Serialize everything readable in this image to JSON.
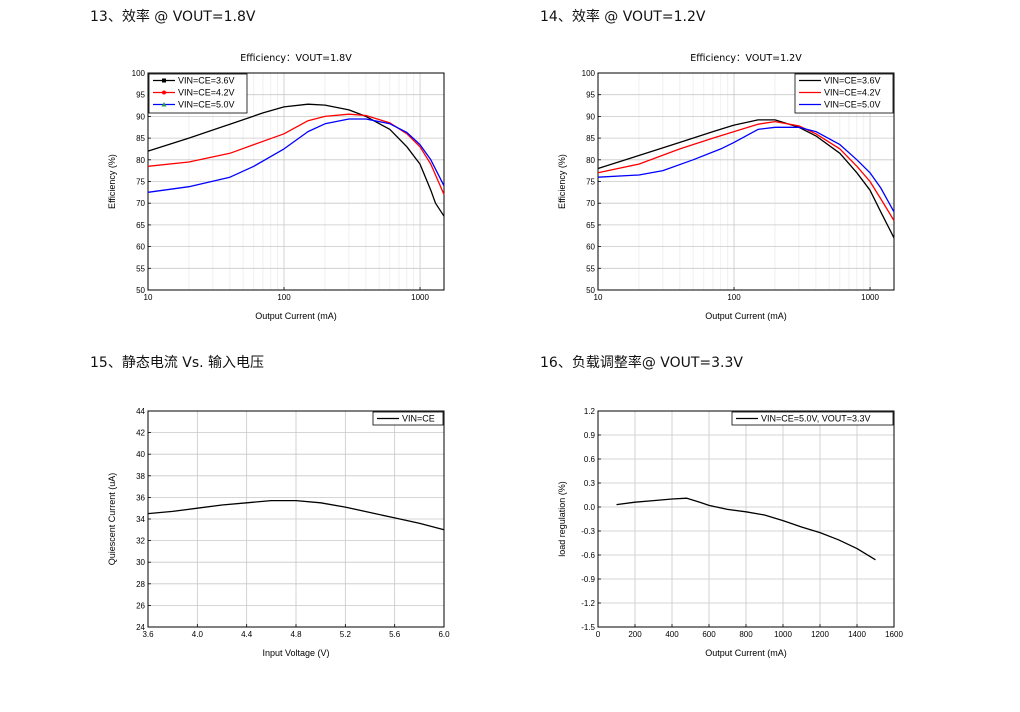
{
  "section_titles": [
    "13、效率 @ VOUT=1.8V",
    "14、效率 @ VOUT=1.2V",
    "15、静态电流 Vs. 输入电压",
    "16、负载调整率@ VOUT=3.3V"
  ],
  "chart_data": [
    {
      "type": "line",
      "title": "Efficiency：VOUT=1.8V",
      "xlabel": "Output Current (mA)",
      "ylabel": "Efficiency (%)",
      "xscale": "log",
      "xlim": [
        10,
        1500
      ],
      "ylim": [
        50,
        100
      ],
      "xticks": [
        10,
        100,
        1000
      ],
      "yticks": [
        50,
        55,
        60,
        65,
        70,
        75,
        80,
        85,
        90,
        95,
        100
      ],
      "grid": true,
      "legend_position": "top-left",
      "series": [
        {
          "name": "VIN=CE=3.6V",
          "color": "#000000",
          "marker": "square",
          "points": [
            [
              10,
              82
            ],
            [
              20,
              85
            ],
            [
              40,
              88.2
            ],
            [
              70,
              90.8
            ],
            [
              100,
              92.2
            ],
            [
              150,
              92.8
            ],
            [
              200,
              92.6
            ],
            [
              300,
              91.5
            ],
            [
              400,
              90
            ],
            [
              600,
              87
            ],
            [
              800,
              83
            ],
            [
              1000,
              79
            ],
            [
              1200,
              73
            ],
            [
              1300,
              70
            ],
            [
              1500,
              67
            ]
          ]
        },
        {
          "name": "VIN=CE=4.2V",
          "color": "#ff0000",
          "marker": "circle",
          "points": [
            [
              10,
              78.5
            ],
            [
              20,
              79.5
            ],
            [
              40,
              81.5
            ],
            [
              60,
              83.5
            ],
            [
              100,
              86
            ],
            [
              150,
              89
            ],
            [
              200,
              90
            ],
            [
              300,
              90.5
            ],
            [
              400,
              90.2
            ],
            [
              600,
              88.5
            ],
            [
              800,
              86
            ],
            [
              1000,
              83
            ],
            [
              1200,
              79
            ],
            [
              1500,
              72
            ]
          ]
        },
        {
          "name": "VIN=CE=5.0V",
          "color": "#0000ff",
          "marker": "triangle",
          "points": [
            [
              10,
              72.5
            ],
            [
              20,
              73.8
            ],
            [
              40,
              76
            ],
            [
              60,
              78.5
            ],
            [
              100,
              82.5
            ],
            [
              150,
              86.5
            ],
            [
              200,
              88.3
            ],
            [
              300,
              89.4
            ],
            [
              400,
              89.4
            ],
            [
              600,
              88.3
            ],
            [
              800,
              86.3
            ],
            [
              1000,
              83.5
            ],
            [
              1200,
              80
            ],
            [
              1500,
              74
            ]
          ]
        }
      ]
    },
    {
      "type": "line",
      "title": "Efficiency：VOUT=1.2V",
      "xlabel": "Output Current (mA)",
      "ylabel": "Efficiency (%)",
      "xscale": "log",
      "xlim": [
        10,
        1500
      ],
      "ylim": [
        50,
        100
      ],
      "xticks": [
        10,
        100,
        1000
      ],
      "yticks": [
        50,
        55,
        60,
        65,
        70,
        75,
        80,
        85,
        90,
        95,
        100
      ],
      "grid": true,
      "legend_position": "top-right",
      "series": [
        {
          "name": "VIN=CE=3.6V",
          "color": "#000000",
          "points": [
            [
              10,
              78
            ],
            [
              20,
              81
            ],
            [
              40,
              84
            ],
            [
              70,
              86.5
            ],
            [
              100,
              88
            ],
            [
              150,
              89.2
            ],
            [
              200,
              89.2
            ],
            [
              300,
              87.5
            ],
            [
              400,
              85.5
            ],
            [
              600,
              81.5
            ],
            [
              800,
              77
            ],
            [
              1000,
              73
            ],
            [
              1200,
              68
            ],
            [
              1500,
              62
            ]
          ]
        },
        {
          "name": "VIN=CE=4.2V",
          "color": "#ff0000",
          "points": [
            [
              10,
              77
            ],
            [
              20,
              79
            ],
            [
              40,
              82.5
            ],
            [
              70,
              85
            ],
            [
              100,
              86.5
            ],
            [
              150,
              88.2
            ],
            [
              200,
              88.8
            ],
            [
              300,
              87.8
            ],
            [
              400,
              86
            ],
            [
              600,
              82.5
            ],
            [
              800,
              78.5
            ],
            [
              1000,
              75
            ],
            [
              1200,
              71
            ],
            [
              1500,
              66
            ]
          ]
        },
        {
          "name": "VIN=CE=5.0V",
          "color": "#0000ff",
          "points": [
            [
              10,
              76
            ],
            [
              20,
              76.5
            ],
            [
              30,
              77.5
            ],
            [
              50,
              80
            ],
            [
              80,
              82.5
            ],
            [
              100,
              84
            ],
            [
              150,
              87
            ],
            [
              200,
              87.5
            ],
            [
              300,
              87.5
            ],
            [
              400,
              86.5
            ],
            [
              600,
              83.5
            ],
            [
              800,
              80
            ],
            [
              1000,
              77
            ],
            [
              1200,
              73.5
            ],
            [
              1500,
              68
            ]
          ]
        }
      ]
    },
    {
      "type": "line",
      "title": "",
      "xlabel": "Input Voltage (V)",
      "ylabel": "Quiescent Current (uA)",
      "xscale": "linear",
      "xlim": [
        3.6,
        6.0
      ],
      "ylim": [
        24,
        44
      ],
      "xticks": [
        3.6,
        4.0,
        4.4,
        4.8,
        5.2,
        5.6,
        6.0
      ],
      "xtick_labels": [
        "3.6",
        "4.0",
        "4.4",
        "4.8",
        "5.2",
        "5.6",
        "6.0"
      ],
      "yticks": [
        24,
        26,
        28,
        30,
        32,
        34,
        36,
        38,
        40,
        42,
        44
      ],
      "grid": true,
      "legend_position": "top-right",
      "series": [
        {
          "name": "VIN=CE",
          "color": "#000000",
          "points": [
            [
              3.6,
              34.5
            ],
            [
              3.8,
              34.7
            ],
            [
              4.0,
              35
            ],
            [
              4.2,
              35.3
            ],
            [
              4.4,
              35.5
            ],
            [
              4.6,
              35.7
            ],
            [
              4.8,
              35.7
            ],
            [
              5.0,
              35.5
            ],
            [
              5.2,
              35.1
            ],
            [
              5.4,
              34.6
            ],
            [
              5.6,
              34.1
            ],
            [
              5.8,
              33.6
            ],
            [
              6.0,
              33.0
            ]
          ]
        }
      ]
    },
    {
      "type": "line",
      "title": "",
      "xlabel": "Output Current (mA)",
      "ylabel": "load regulation (%)",
      "xscale": "linear",
      "xlim": [
        0,
        1600
      ],
      "ylim": [
        -1.5,
        1.2
      ],
      "xticks": [
        0,
        200,
        400,
        600,
        800,
        1000,
        1200,
        1400,
        1600
      ],
      "xtick_labels": [
        "0",
        "200",
        "400",
        "600",
        "800",
        "1000",
        "1200",
        "1400",
        "1600"
      ],
      "yticks": [
        -1.5,
        -1.2,
        -0.9,
        -0.6,
        -0.3,
        0.0,
        0.3,
        0.6,
        0.9,
        1.2
      ],
      "ytick_labels": [
        "-1.5",
        "-1.2",
        "-0.9",
        "-0.6",
        "-0.3",
        "0.0",
        "0.3",
        "0.6",
        "0.9",
        "1.2"
      ],
      "grid": true,
      "legend_position": "top-right",
      "series": [
        {
          "name": "VIN=CE=5.0V, VOUT=3.3V",
          "color": "#000000",
          "points": [
            [
              100,
              0.03
            ],
            [
              200,
              0.06
            ],
            [
              300,
              0.08
            ],
            [
              400,
              0.1
            ],
            [
              480,
              0.11
            ],
            [
              550,
              0.06
            ],
            [
              600,
              0.02
            ],
            [
              700,
              -0.03
            ],
            [
              800,
              -0.06
            ],
            [
              900,
              -0.1
            ],
            [
              1000,
              -0.17
            ],
            [
              1100,
              -0.25
            ],
            [
              1200,
              -0.32
            ],
            [
              1300,
              -0.41
            ],
            [
              1400,
              -0.52
            ],
            [
              1500,
              -0.66
            ]
          ]
        }
      ]
    }
  ]
}
